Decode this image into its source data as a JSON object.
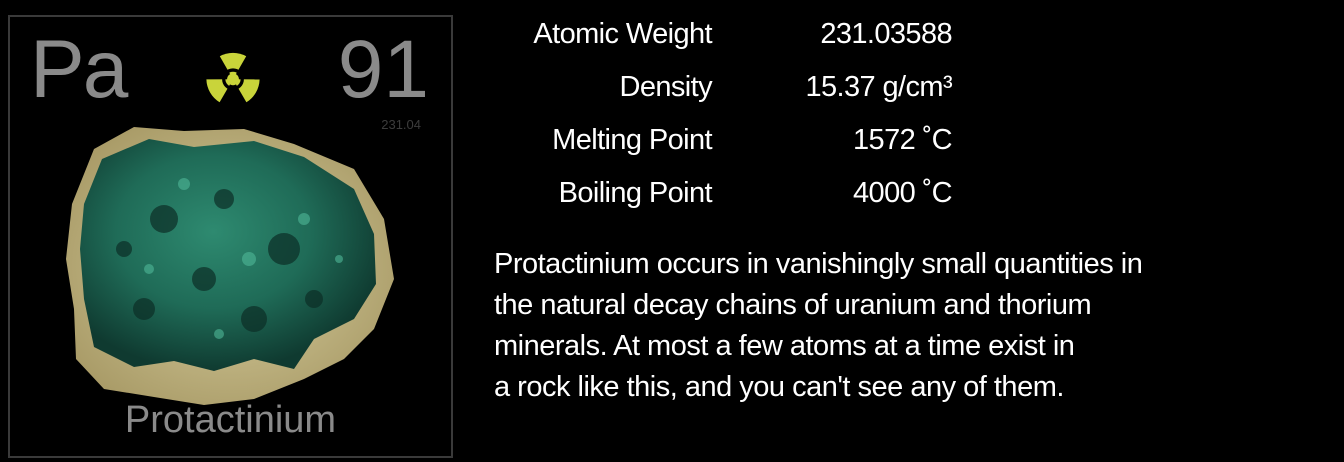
{
  "element": {
    "symbol": "Pa",
    "atomic_number": "91",
    "mass_short": "231.04",
    "name": "Protactinium",
    "hazard_icon": "radiation-trefoil-icon",
    "hazard_color": "#c9d43a"
  },
  "properties": {
    "atomic_weight": {
      "label": "Atomic Weight",
      "value": "231.03588"
    },
    "density": {
      "label": "Density",
      "value": "15.37 g/cm³"
    },
    "melting_point": {
      "label": "Melting Point",
      "value": "1572 ˚C"
    },
    "boiling_point": {
      "label": "Boiling Point",
      "value": "4000 ˚C"
    }
  },
  "description": {
    "lines": [
      "Protactinium occurs in vanishingly small quantities in",
      "the natural decay chains of uranium and thorium",
      "minerals.  At most a few atoms at a time exist in",
      "a rock like this, and you can't see any of them."
    ]
  }
}
